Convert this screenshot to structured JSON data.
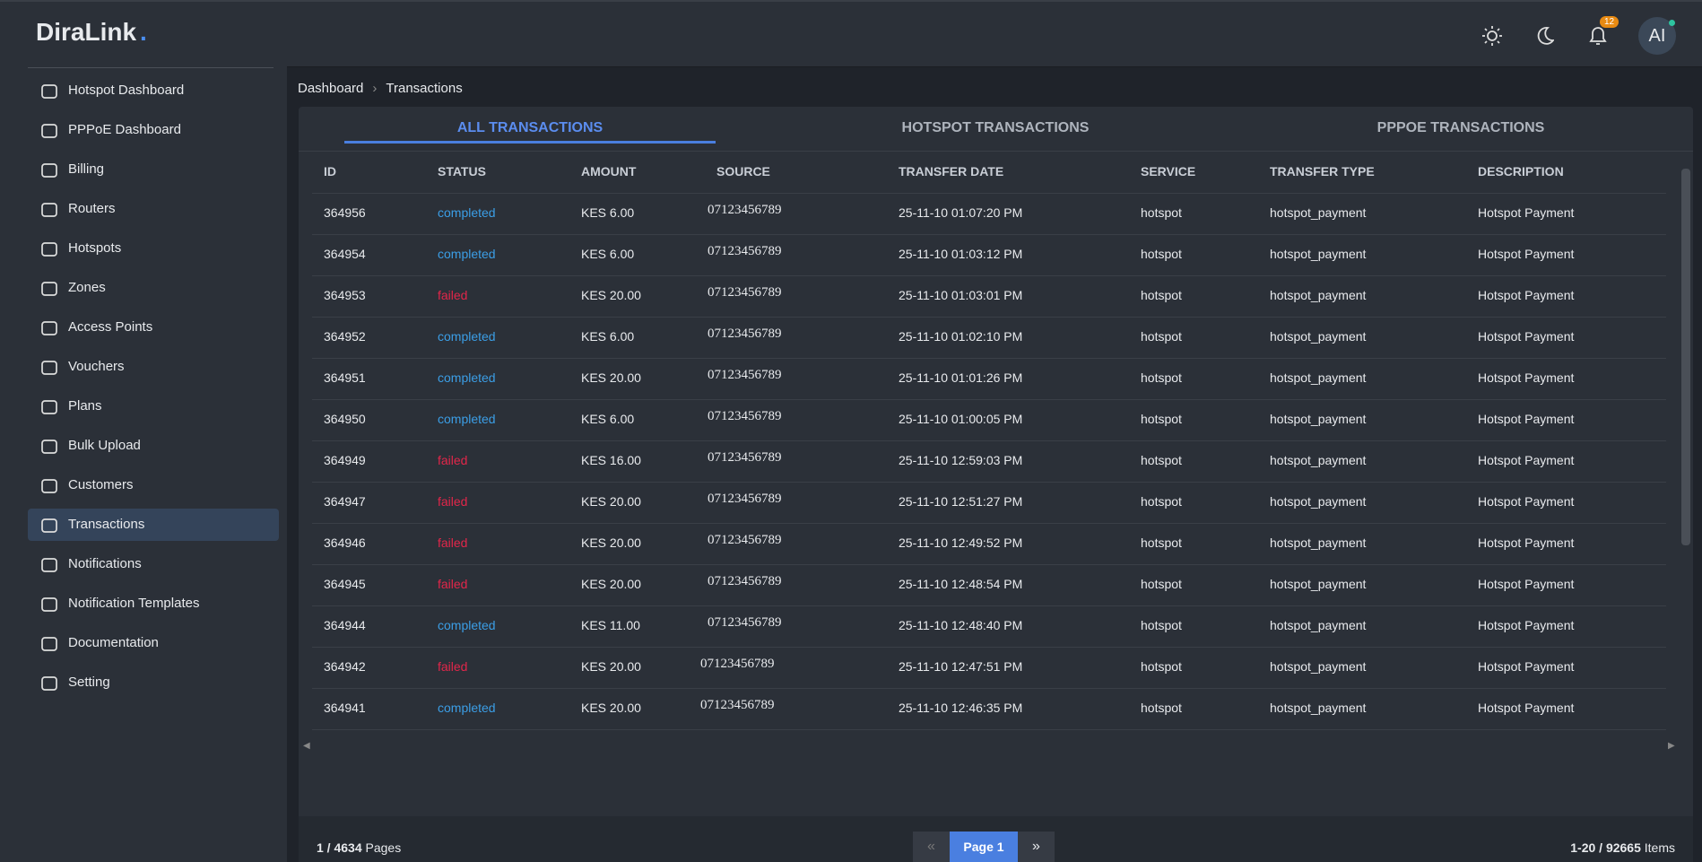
{
  "header": {
    "logo": "DiraLink",
    "logo_dot": ".",
    "badge": "12",
    "avatar": "AI"
  },
  "sidebar": {
    "items": [
      "Hotspot Dashboard",
      "PPPoE Dashboard",
      "Billing",
      "Routers",
      "Hotspots",
      "Zones",
      "Access Points",
      "Vouchers",
      "Plans",
      "Bulk Upload",
      "Customers",
      "Transactions",
      "Notifications",
      "Notification Templates",
      "Documentation",
      "Setting"
    ],
    "active": 11
  },
  "breadcrumb": [
    "Dashboard",
    "Transactions"
  ],
  "tabs": [
    "ALL TRANSACTIONS",
    "HOTSPOT TRANSACTIONS",
    "PPPOE TRANSACTIONS"
  ],
  "table": {
    "columns": [
      "ID",
      "STATUS",
      "AMOUNT",
      "SOURCE",
      "TRANSFER DATE",
      "SERVICE",
      "TRANSFER TYPE",
      "DESCRIPTION"
    ],
    "rows": [
      [
        "364956",
        "completed",
        "KES 6.00",
        "07123456789",
        "25-11-10 01:07:20 PM",
        "hotspot",
        "hotspot_payment",
        "Hotspot Payment"
      ],
      [
        "364954",
        "completed",
        "KES 6.00",
        "07123456789",
        "25-11-10 01:03:12 PM",
        "hotspot",
        "hotspot_payment",
        "Hotspot Payment"
      ],
      [
        "364953",
        "failed",
        "KES 20.00",
        "07123456789",
        "25-11-10 01:03:01 PM",
        "hotspot",
        "hotspot_payment",
        "Hotspot Payment"
      ],
      [
        "364952",
        "completed",
        "KES 6.00",
        "07123456789",
        "25-11-10 01:02:10 PM",
        "hotspot",
        "hotspot_payment",
        "Hotspot Payment"
      ],
      [
        "364951",
        "completed",
        "KES 20.00",
        "07123456789",
        "25-11-10 01:01:26 PM",
        "hotspot",
        "hotspot_payment",
        "Hotspot Payment"
      ],
      [
        "364950",
        "completed",
        "KES 6.00",
        "07123456789",
        "25-11-10 01:00:05 PM",
        "hotspot",
        "hotspot_payment",
        "Hotspot Payment"
      ],
      [
        "364949",
        "failed",
        "KES 16.00",
        "07123456789",
        "25-11-10 12:59:03 PM",
        "hotspot",
        "hotspot_payment",
        "Hotspot Payment"
      ],
      [
        "364947",
        "failed",
        "KES 20.00",
        "07123456789",
        "25-11-10 12:51:27 PM",
        "hotspot",
        "hotspot_payment",
        "Hotspot Payment"
      ],
      [
        "364946",
        "failed",
        "KES 20.00",
        "07123456789",
        "25-11-10 12:49:52 PM",
        "hotspot",
        "hotspot_payment",
        "Hotspot Payment"
      ],
      [
        "364945",
        "failed",
        "KES 20.00",
        "07123456789",
        "25-11-10 12:48:54 PM",
        "hotspot",
        "hotspot_payment",
        "Hotspot Payment"
      ],
      [
        "364944",
        "completed",
        "KES 11.00",
        "07123456789",
        "25-11-10 12:48:40 PM",
        "hotspot",
        "hotspot_payment",
        "Hotspot Payment"
      ],
      [
        "364942",
        "failed",
        "KES 20.00",
        "07123456789",
        "25-11-10 12:47:51 PM",
        "hotspot",
        "hotspot_payment",
        "Hotspot Payment"
      ],
      [
        "364941",
        "completed",
        "KES 20.00",
        "07123456789",
        "25-11-10 12:46:35 PM",
        "hotspot",
        "hotspot_payment",
        "Hotspot Payment"
      ]
    ]
  },
  "footer": {
    "pages_count": "1 / 4634",
    "pages_word": "Pages",
    "prev": "«",
    "page": "Page 1",
    "next": "»",
    "items_count": "1-20 / 92665",
    "items_word": "Items"
  }
}
